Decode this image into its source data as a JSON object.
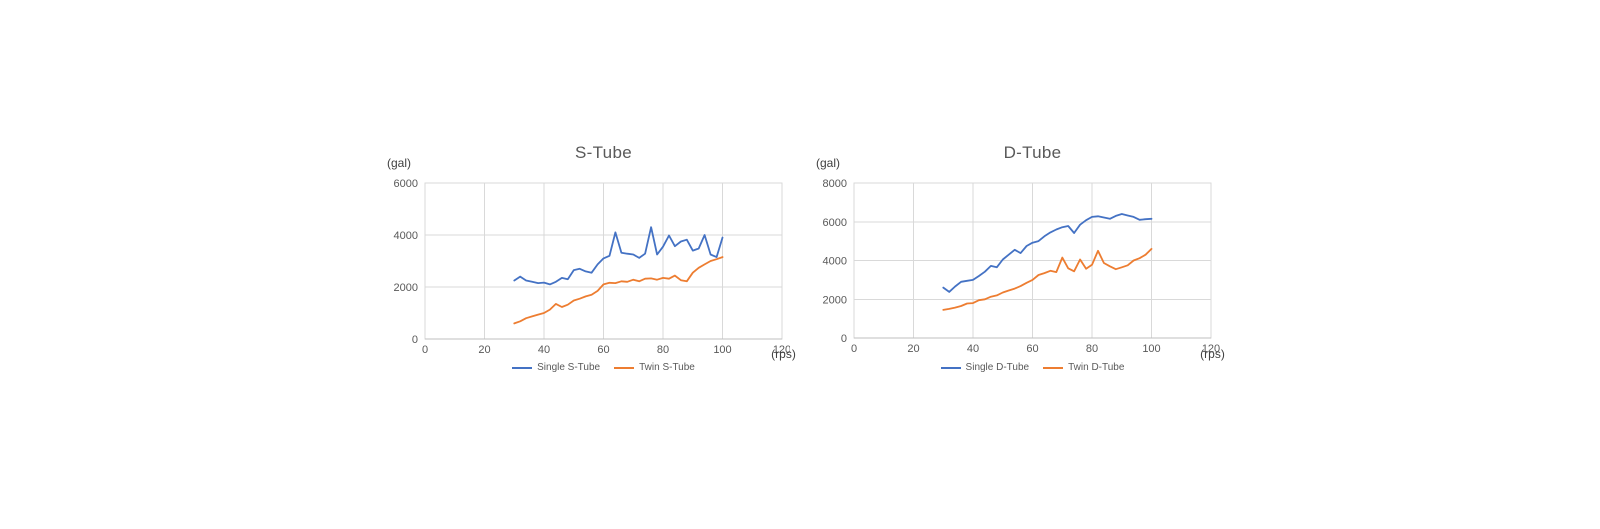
{
  "chart_data": [
    {
      "type": "line",
      "title": "S-Tube",
      "y_unit": "(gal)",
      "x_unit": "(rps)",
      "xlabel": "",
      "ylabel": "",
      "xlim": [
        0,
        120
      ],
      "ylim": [
        0,
        6000
      ],
      "xticks": [
        0,
        20,
        40,
        60,
        80,
        100,
        120
      ],
      "yticks": [
        0,
        2000,
        4000,
        6000
      ],
      "grid": true,
      "legend_position": "bottom",
      "x": [
        30,
        32,
        34,
        36,
        38,
        40,
        42,
        44,
        46,
        48,
        50,
        52,
        54,
        56,
        58,
        60,
        62,
        64,
        66,
        68,
        70,
        72,
        74,
        76,
        78,
        80,
        82,
        84,
        86,
        88,
        90,
        92,
        94,
        96,
        98,
        100
      ],
      "series": [
        {
          "name": "Single S-Tube",
          "color": "#4472C4",
          "values": [
            2250,
            2400,
            2250,
            2200,
            2150,
            2170,
            2100,
            2200,
            2350,
            2300,
            2650,
            2700,
            2600,
            2550,
            2870,
            3100,
            3200,
            4100,
            3320,
            3280,
            3250,
            3120,
            3280,
            4300,
            3250,
            3550,
            3980,
            3570,
            3750,
            3820,
            3400,
            3480,
            4000,
            3250,
            3150,
            3900
          ]
        },
        {
          "name": "Twin S-Tube",
          "color": "#ED7D31",
          "values": [
            600,
            680,
            800,
            870,
            940,
            1000,
            1130,
            1350,
            1230,
            1320,
            1480,
            1550,
            1640,
            1700,
            1850,
            2100,
            2160,
            2150,
            2220,
            2200,
            2280,
            2220,
            2320,
            2330,
            2280,
            2350,
            2320,
            2440,
            2260,
            2220,
            2550,
            2740,
            2870,
            3000,
            3070,
            3150
          ]
        }
      ]
    },
    {
      "type": "line",
      "title": "D-Tube",
      "y_unit": "(gal)",
      "x_unit": "(rps)",
      "xlabel": "",
      "ylabel": "",
      "xlim": [
        0,
        120
      ],
      "ylim": [
        0,
        8000
      ],
      "xticks": [
        0,
        20,
        40,
        60,
        80,
        100,
        120
      ],
      "yticks": [
        0,
        2000,
        4000,
        6000,
        8000
      ],
      "grid": true,
      "legend_position": "bottom",
      "x": [
        30,
        32,
        34,
        36,
        38,
        40,
        42,
        44,
        46,
        48,
        50,
        52,
        54,
        56,
        58,
        60,
        62,
        64,
        66,
        68,
        70,
        72,
        74,
        76,
        78,
        80,
        82,
        84,
        86,
        88,
        90,
        92,
        94,
        96,
        98,
        100
      ],
      "series": [
        {
          "name": "Single D-Tube",
          "color": "#4472C4",
          "values": [
            2600,
            2380,
            2660,
            2900,
            2950,
            3000,
            3200,
            3420,
            3720,
            3650,
            4050,
            4300,
            4550,
            4380,
            4750,
            4920,
            5000,
            5250,
            5450,
            5600,
            5720,
            5780,
            5420,
            5850,
            6080,
            6250,
            6280,
            6220,
            6150,
            6300,
            6400,
            6320,
            6250,
            6100,
            6130,
            6150
          ]
        },
        {
          "name": "Twin D-Tube",
          "color": "#ED7D31",
          "values": [
            1450,
            1500,
            1570,
            1650,
            1780,
            1800,
            1950,
            2000,
            2130,
            2200,
            2350,
            2450,
            2550,
            2680,
            2850,
            3000,
            3250,
            3350,
            3470,
            3400,
            4150,
            3600,
            3440,
            4050,
            3570,
            3780,
            4500,
            3870,
            3700,
            3550,
            3650,
            3750,
            4000,
            4120,
            4300,
            4600
          ]
        }
      ]
    }
  ]
}
